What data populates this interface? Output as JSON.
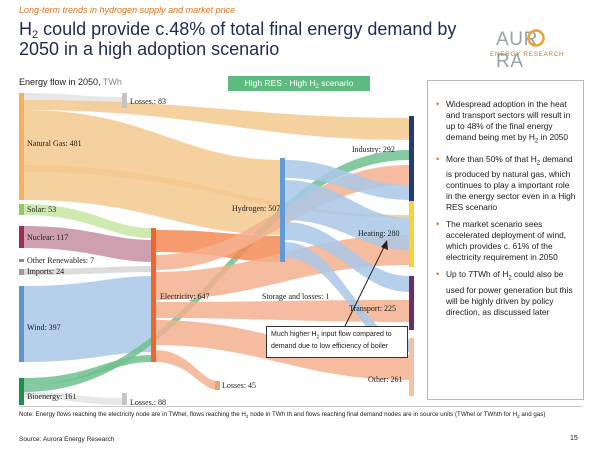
{
  "header": {
    "kicker": "Long-term trends in hydrogen supply and market price",
    "title_parts": [
      "H",
      "2",
      " could provide c.48% of total final energy demand by 2050 in a high adoption scenario"
    ]
  },
  "logo": {
    "word_1": "AUR",
    "word_2": "RA",
    "sub": "ENERGY RESEARCH",
    "accent": "#e8a33d"
  },
  "diagram": {
    "label": "Energy flow in 2050, ",
    "unit": "TWh",
    "scenario_parts": [
      "High RES - High H",
      "2",
      " scenario"
    ],
    "nodes": {
      "natural_gas": "Natural Gas: 481",
      "losses_top": "Losses.: 83",
      "solar": "Solar: 53",
      "nuclear": "Nuclear: 117",
      "other_renewables": "Other Renewables: 7",
      "imports": "Imports: 24",
      "wind": "Wind: 397",
      "bioenergy": "Bioenergy: 161",
      "losses_bottom": "Losses.: 88",
      "electricity": "Electricity: 647",
      "hydrogen": "Hydrogen: 507",
      "storage": "Storage and losses: 1",
      "losses_mid": "Losses: 45",
      "industry": "Industry: 292",
      "heating": "Heating: 280",
      "transport": "Transport: 225",
      "other": "Other: 261"
    },
    "callout_parts": [
      "Much higher H",
      "2",
      " input flow compared to demand due to low efficiency of boiler"
    ],
    "colors": {
      "natural_gas": "#f5c98f",
      "solar": "#c7e6a3",
      "nuclear": "#c58fa1",
      "wind": "#a9c8e8",
      "bioenergy": "#6fc08e",
      "electricity": "#f58a55",
      "hydrogen": "#7fb3e0",
      "industry": "#1f3d7a",
      "heating": "#f6d23c",
      "transport": "#6b2d6e",
      "other": "#f5c0a6",
      "losses": "#d9d9d9",
      "scenario_badge": "#5dbb7f",
      "accent": "#e0701e"
    }
  },
  "panel": {
    "bullets": [
      [
        "Widespread adoption in the heat and transport sectors will result in up to 48% of the final energy demand being met by H",
        "2",
        " in 2050"
      ],
      [
        "More than 50% of that H",
        "2",
        " demand is produced by natural gas, which continues to play a important role in the energy sector even in a High RES scenario"
      ],
      [
        "The market scenario sees accelerated deployment of wind, which provides c. 61% of the electricity requirement in 2050",
        "",
        ""
      ],
      [
        "Up to 7TWh of H",
        "2",
        " could also be used for power generation but this will be highly driven by policy direction, as discussed later"
      ]
    ]
  },
  "footer": {
    "note_parts": [
      "Note: Energy flows reaching the electricity node are in TWhel, flows reaching the H",
      "2",
      " node in TWh th and flows reaching final demand nodes are in source units (TWhel or TWhth for H",
      "2",
      " and gas)"
    ],
    "source": "Source: Aurora Energy Research",
    "page": "15"
  }
}
